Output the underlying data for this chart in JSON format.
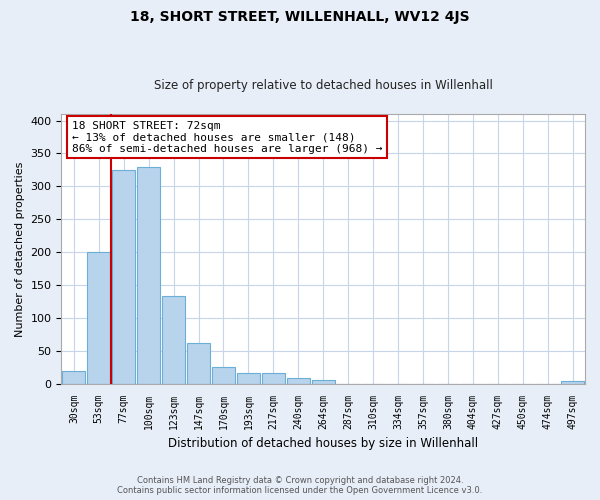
{
  "title": "18, SHORT STREET, WILLENHALL, WV12 4JS",
  "subtitle": "Size of property relative to detached houses in Willenhall",
  "xlabel": "Distribution of detached houses by size in Willenhall",
  "ylabel": "Number of detached properties",
  "bar_labels": [
    "30sqm",
    "53sqm",
    "77sqm",
    "100sqm",
    "123sqm",
    "147sqm",
    "170sqm",
    "193sqm",
    "217sqm",
    "240sqm",
    "264sqm",
    "287sqm",
    "310sqm",
    "334sqm",
    "357sqm",
    "380sqm",
    "404sqm",
    "427sqm",
    "450sqm",
    "474sqm",
    "497sqm"
  ],
  "bar_heights": [
    19,
    200,
    325,
    330,
    133,
    62,
    25,
    17,
    16,
    8,
    5,
    0,
    0,
    0,
    0,
    0,
    0,
    0,
    0,
    0,
    4
  ],
  "bar_color": "#b8d4ec",
  "bar_edge_color": "#6baed6",
  "vline_color": "#cc0000",
  "annotation_text": "18 SHORT STREET: 72sqm\n← 13% of detached houses are smaller (148)\n86% of semi-detached houses are larger (968) →",
  "annotation_box_color": "#ffffff",
  "annotation_box_edge": "#cc0000",
  "ylim": [
    0,
    410
  ],
  "yticks": [
    0,
    50,
    100,
    150,
    200,
    250,
    300,
    350,
    400
  ],
  "footer_line1": "Contains HM Land Registry data © Crown copyright and database right 2024.",
  "footer_line2": "Contains public sector information licensed under the Open Government Licence v3.0.",
  "bg_color": "#e8eef8",
  "plot_bg_color": "#ffffff",
  "grid_color": "#c8d4e8"
}
